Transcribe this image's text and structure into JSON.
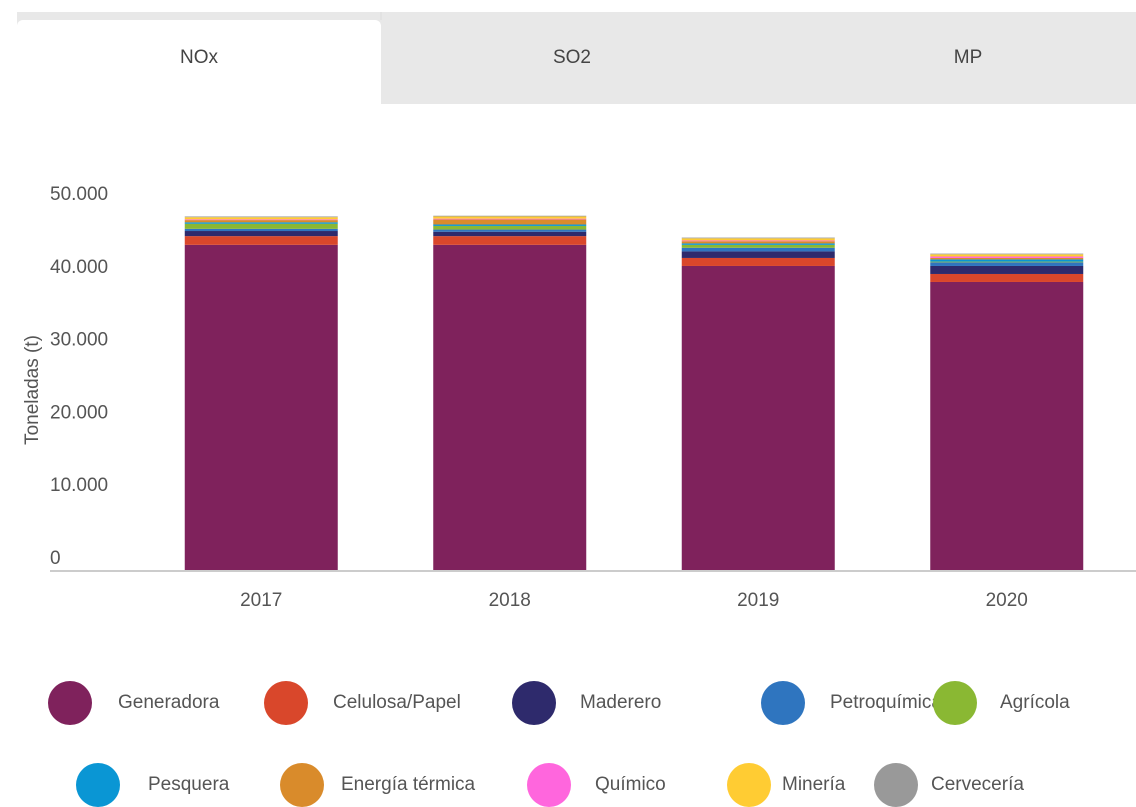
{
  "tabs": [
    "NOx",
    "SO2",
    "MP"
  ],
  "chart_data": {
    "type": "stacked_bar",
    "y_label": "Toneladas (t)",
    "categories": [
      "2017",
      "2018",
      "2019",
      "2020"
    ],
    "ylim": [
      0,
      50000
    ],
    "yticks": [
      {
        "value": 0,
        "label": "0"
      },
      {
        "value": 10000,
        "label": "10.000"
      },
      {
        "value": 20000,
        "label": "20.000"
      },
      {
        "value": 30000,
        "label": "30.000"
      },
      {
        "value": 40000,
        "label": "40.000"
      },
      {
        "value": 50000,
        "label": "50.000"
      }
    ],
    "series": [
      {
        "name": "Generadora",
        "color": "#7f225c",
        "values": [
          44800,
          44800,
          41900,
          39700
        ]
      },
      {
        "name": "Celulosa/Papel",
        "color": "#d9472b",
        "values": [
          1200,
          1200,
          1100,
          1100
        ]
      },
      {
        "name": "Maderero",
        "color": "#2e2a6c",
        "values": [
          700,
          600,
          900,
          1100
        ]
      },
      {
        "name": "Petroquímica",
        "color": "#2f75bf",
        "values": [
          300,
          300,
          500,
          500
        ]
      },
      {
        "name": "Agrícola",
        "color": "#8ab833",
        "values": [
          700,
          500,
          400,
          100
        ]
      },
      {
        "name": "Pesquera",
        "color": "#0a96d4",
        "values": [
          200,
          200,
          200,
          300
        ]
      },
      {
        "name": "Energía térmica",
        "color": "#d98b2b",
        "values": [
          300,
          700,
          300,
          200
        ]
      },
      {
        "name": "Químico",
        "color": "#ff66dd",
        "values": [
          100,
          100,
          100,
          200
        ]
      },
      {
        "name": "Minería",
        "color": "#ffcc33",
        "values": [
          300,
          300,
          300,
          300
        ]
      },
      {
        "name": "Cervecería",
        "color": "#999999",
        "values": [
          100,
          100,
          100,
          100
        ]
      }
    ]
  }
}
